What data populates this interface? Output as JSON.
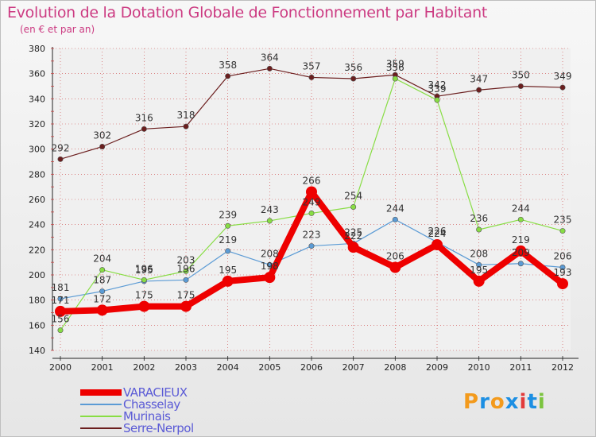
{
  "header": {
    "title": "Evolution de la Dotation Globale de Fonctionnement par Habitant",
    "subtitle": "(en € et par an)"
  },
  "logo": {
    "text": "Proxiti"
  },
  "colors": {
    "title": "#cc3b82",
    "legend_text": "#5b5bd6",
    "grid": "#cc4444"
  },
  "chart_data": {
    "type": "line",
    "title": "Evolution de la Dotation Globale de Fonctionnement par Habitant",
    "subtitle": "(en € et par an)",
    "xlabel": "",
    "ylabel": "",
    "x": [
      "2000",
      "2001",
      "2002",
      "2003",
      "2004",
      "2005",
      "2006",
      "2007",
      "2008",
      "2009",
      "2010",
      "2011",
      "2012"
    ],
    "ylim": [
      140,
      380
    ],
    "yticks": [
      "140",
      "160",
      "180",
      "200",
      "220",
      "240",
      "260",
      "280",
      "300",
      "320",
      "340",
      "360",
      "380"
    ],
    "grid": true,
    "legend_position": "bottom-left",
    "series": [
      {
        "name": "VARACIEUX",
        "color": "#ee0000",
        "values": [
          171,
          172,
          175,
          175,
          195,
          198,
          266,
          222,
          206,
          224,
          195,
          219,
          193
        ],
        "labels": [
          "171",
          "172",
          "175",
          "175",
          "195",
          "198",
          "266",
          "222",
          "206",
          "224",
          "195",
          "219",
          "193"
        ]
      },
      {
        "name": "Chasselay",
        "color": "#5b9bd5",
        "values": [
          181,
          187,
          195,
          196,
          219,
          208,
          223,
          225,
          244,
          226,
          208,
          209,
          206
        ],
        "labels": [
          "181",
          "187",
          "195",
          "196",
          "219",
          "208",
          "223",
          "225",
          "244",
          "226",
          "208",
          "209",
          "206"
        ]
      },
      {
        "name": "Murinais",
        "color": "#88dd44",
        "values": [
          156,
          204,
          196,
          203,
          239,
          243,
          249,
          254,
          356,
          339,
          236,
          244,
          235
        ],
        "labels": [
          "156",
          "204",
          "196",
          "203",
          "239",
          "243",
          "249",
          "254",
          "356",
          "339",
          "236",
          "244",
          "235"
        ]
      },
      {
        "name": "Serre-Nerpol",
        "color": "#6b1e1e",
        "values": [
          292,
          302,
          316,
          318,
          358,
          364,
          357,
          356,
          359,
          342,
          347,
          350,
          349
        ],
        "labels": [
          "292",
          "302",
          "316",
          "318",
          "358",
          "364",
          "357",
          "356",
          "359",
          "342",
          "347",
          "350",
          "349"
        ]
      }
    ]
  }
}
